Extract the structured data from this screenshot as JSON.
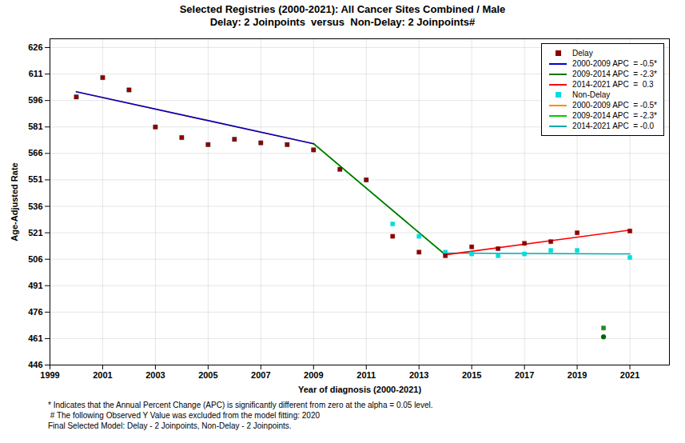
{
  "chart_data": {
    "type": "scatter",
    "title": "Selected Registries (2000-2021): All Cancer Sites Combined / Male",
    "subtitle": "Delay: 2 Joinpoints  versus  Non-Delay: 2 Joinpoints#",
    "x_label": "Year of diagnosis (2000-2021)",
    "y_label": "Age-Adjusted Rate",
    "xlim": [
      1999,
      2022.5
    ],
    "ylim": [
      446,
      631
    ],
    "xticks": [
      1999,
      2001,
      2003,
      2005,
      2007,
      2009,
      2011,
      2013,
      2015,
      2017,
      2019,
      2021
    ],
    "yticks": [
      446,
      461,
      476,
      491,
      506,
      521,
      536,
      551,
      566,
      581,
      596,
      611,
      626
    ],
    "grid": true,
    "legend": "upper right",
    "series": [
      {
        "name": "Delay",
        "type": "scatter",
        "marker": "square",
        "color": "#8B0000",
        "x": [
          2000,
          2001,
          2002,
          2003,
          2004,
          2005,
          2006,
          2007,
          2008,
          2009,
          2010,
          2011,
          2012,
          2013,
          2014,
          2015,
          2016,
          2017,
          2018,
          2019,
          2021
        ],
        "values": [
          598,
          609,
          602,
          581,
          575,
          571,
          574,
          572,
          571,
          568,
          557,
          551,
          519,
          510,
          508,
          513,
          512,
          515,
          516,
          521,
          522
        ]
      },
      {
        "name": "2000-2009 APC  = -0.5*",
        "type": "line",
        "color": "#0000CC",
        "x": [
          2000,
          2009
        ],
        "values": [
          601.0,
          571.5
        ]
      },
      {
        "name": "2009-2014 APC  = -2.3*",
        "type": "line",
        "color": "#007700",
        "x": [
          2009,
          2014
        ],
        "values": [
          571.5,
          508.5
        ]
      },
      {
        "name": "2014-2021 APC  =  0.3",
        "type": "line",
        "color": "#FF0000",
        "x": [
          2014,
          2021
        ],
        "values": [
          508.5,
          522.5
        ]
      },
      {
        "name": "Non-Delay",
        "type": "scatter",
        "marker": "square",
        "color": "#00DDDD",
        "x": [
          2000,
          2001,
          2002,
          2003,
          2004,
          2005,
          2006,
          2007,
          2008,
          2009,
          2010,
          2011,
          2012,
          2013,
          2014,
          2015,
          2016,
          2017,
          2018,
          2019,
          2021
        ],
        "values": [
          598,
          609,
          602,
          581,
          575,
          571,
          574,
          572,
          571,
          568,
          557,
          551,
          526,
          519,
          510,
          509,
          508,
          509,
          511,
          511,
          507
        ]
      },
      {
        "name": "2000-2009 APC  = -0.5*",
        "type": "line",
        "color": "#FF8C00",
        "x": [
          2000,
          2009
        ],
        "values": [
          601.0,
          571.5
        ]
      },
      {
        "name": "2009-2014 APC  = -2.3*",
        "type": "line",
        "color": "#00CC00",
        "x": [
          2009,
          2014
        ],
        "values": [
          571.5,
          508.5
        ]
      },
      {
        "name": "2014-2021 APC  = -0.0",
        "type": "line",
        "color": "#00AAAA",
        "x": [
          2014,
          2021
        ],
        "values": [
          509.5,
          509.0
        ]
      },
      {
        "type": "scatter",
        "marker": "square",
        "color": "#228B22",
        "x": [
          2020
        ],
        "values": [
          467
        ]
      },
      {
        "type": "scatter",
        "marker": "circle",
        "color": "#006400",
        "x": [
          2020
        ],
        "values": [
          462
        ]
      }
    ],
    "annotations": [
      "* Indicates that the Annual Percent Change (APC) is significantly different from zero at the alpha = 0.05 level.",
      " # The following Observed Y Value was excluded from the model fitting: 2020",
      "Final Selected Model: Delay - 2 Joinpoints, Non-Delay - 2 Joinpoints."
    ]
  }
}
